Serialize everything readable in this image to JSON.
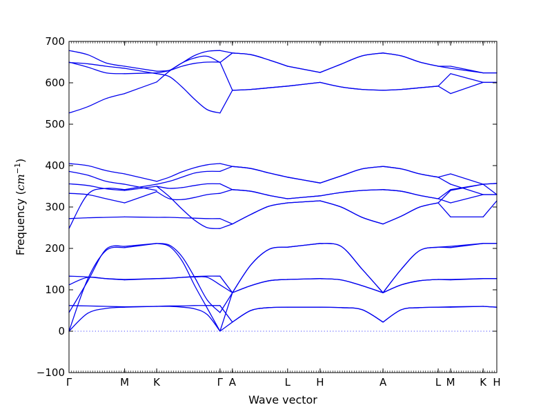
{
  "chart_data": {
    "type": "line",
    "title": "",
    "xlabel": "Wave vector",
    "ylabel": {
      "prefix": "Frequency (",
      "math": "cm",
      "sup": "−1",
      "suffix": ")"
    },
    "ylim": [
      -100,
      700
    ],
    "yticks": [
      -100,
      0,
      100,
      200,
      300,
      400,
      500,
      600,
      700
    ],
    "grid": false,
    "legend": "none",
    "line_color": "#0000ee",
    "zero_line_color": "#4444ff",
    "high_symmetry_points": [
      {
        "label": "Γ",
        "position": 0
      },
      {
        "label": "M",
        "position": 0.13
      },
      {
        "label": "K",
        "position": 0.205
      },
      {
        "label": "Γ",
        "position": 0.353
      },
      {
        "label": "A",
        "position": 0.382
      },
      {
        "label": "L",
        "position": 0.511
      },
      {
        "label": "H",
        "position": 0.587
      },
      {
        "label": "A",
        "position": 0.734
      },
      {
        "label": "L",
        "position": 0.863
      },
      {
        "label": "M",
        "position": 0.892
      },
      {
        "label": "K",
        "position": 0.968
      },
      {
        "label": "H",
        "position": 1.0
      }
    ],
    "segments": [
      {
        "from": "Γ",
        "to": "M",
        "bands": [
          [
            0,
            43,
            55,
            58
          ],
          [
            0,
            125,
            195,
            202
          ],
          [
            45,
            120,
            198,
            205
          ],
          [
            62,
            61,
            60,
            59
          ],
          [
            112,
            130,
            127,
            125
          ],
          [
            133,
            131,
            127,
            124
          ],
          [
            248,
            330,
            345,
            342
          ],
          [
            272,
            274,
            275,
            276
          ],
          [
            333,
            330,
            320,
            310
          ],
          [
            356,
            352,
            344,
            340
          ],
          [
            386,
            377,
            362,
            355
          ],
          [
            405,
            400,
            388,
            380
          ],
          [
            527,
            542,
            562,
            574
          ],
          [
            649,
            646,
            640,
            635
          ],
          [
            650,
            638,
            624,
            622
          ],
          [
            678,
            668,
            648,
            640
          ]
        ]
      },
      {
        "from": "M",
        "to": "K",
        "bands": [
          [
            58,
            60
          ],
          [
            202,
            212
          ],
          [
            205,
            212
          ],
          [
            59,
            60
          ],
          [
            125,
            127
          ],
          [
            124,
            127
          ],
          [
            342,
            355
          ],
          [
            276,
            275
          ],
          [
            310,
            337
          ],
          [
            340,
            350
          ],
          [
            355,
            340
          ],
          [
            380,
            362
          ],
          [
            574,
            602
          ],
          [
            635,
            622
          ],
          [
            622,
            624
          ],
          [
            640,
            628
          ]
        ]
      },
      {
        "from": "K",
        "to": "Γ",
        "bands": [
          [
            60,
            60,
            58,
            54,
            40,
            0
          ],
          [
            212,
            205,
            170,
            110,
            55,
            0
          ],
          [
            212,
            208,
            180,
            130,
            75,
            45
          ],
          [
            60,
            61,
            61,
            62,
            62,
            62
          ],
          [
            127,
            128,
            130,
            131,
            130,
            112
          ],
          [
            127,
            128,
            130,
            132,
            133,
            133
          ],
          [
            355,
            362,
            372,
            382,
            386,
            386
          ],
          [
            275,
            275,
            274,
            273,
            272,
            272
          ],
          [
            337,
            320,
            318,
            323,
            330,
            333
          ],
          [
            350,
            345,
            347,
            352,
            356,
            356
          ],
          [
            362,
            372,
            385,
            395,
            402,
            405
          ],
          [
            350,
            325,
            295,
            268,
            250,
            248
          ],
          [
            602,
            628,
            648,
            660,
            664,
            649
          ],
          [
            622,
            615,
            590,
            560,
            535,
            527
          ],
          [
            624,
            630,
            648,
            666,
            676,
            678
          ],
          [
            628,
            630,
            640,
            647,
            650,
            650
          ]
        ]
      },
      {
        "from": "Γ",
        "to": "A",
        "bands": [
          [
            0,
            22
          ],
          [
            0,
            93
          ],
          [
            45,
            93
          ],
          [
            62,
            22
          ],
          [
            112,
            93
          ],
          [
            133,
            93
          ],
          [
            386,
            398
          ],
          [
            272,
            259
          ],
          [
            333,
            342
          ],
          [
            356,
            342
          ],
          [
            405,
            398
          ],
          [
            248,
            259
          ],
          [
            649,
            672
          ],
          [
            527,
            582
          ],
          [
            678,
            672
          ],
          [
            650,
            582
          ]
        ]
      },
      {
        "from": "A",
        "to": "L",
        "bands": [
          [
            22,
            50,
            57,
            58
          ],
          [
            93,
            160,
            198,
            203
          ],
          [
            93,
            110,
            122,
            125
          ],
          [
            22,
            50,
            57,
            58
          ],
          [
            93,
            110,
            122,
            125
          ],
          [
            93,
            160,
            198,
            203
          ],
          [
            398,
            393,
            382,
            372
          ],
          [
            259,
            282,
            302,
            310
          ],
          [
            342,
            338,
            328,
            320
          ],
          [
            342,
            338,
            328,
            320
          ],
          [
            398,
            393,
            382,
            372
          ],
          [
            259,
            282,
            302,
            310
          ],
          [
            672,
            668,
            655,
            640
          ],
          [
            582,
            584,
            588,
            592
          ],
          [
            672,
            668,
            655,
            640
          ],
          [
            582,
            584,
            588,
            592
          ]
        ]
      },
      {
        "from": "L",
        "to": "H",
        "bands": [
          [
            58,
            58
          ],
          [
            203,
            212
          ],
          [
            125,
            127
          ],
          [
            58,
            58
          ],
          [
            125,
            127
          ],
          [
            203,
            212
          ],
          [
            372,
            358
          ],
          [
            310,
            315
          ],
          [
            320,
            327
          ],
          [
            320,
            327
          ],
          [
            372,
            358
          ],
          [
            310,
            315
          ],
          [
            640,
            625
          ],
          [
            592,
            601
          ],
          [
            640,
            625
          ],
          [
            592,
            601
          ]
        ]
      },
      {
        "from": "H",
        "to": "A",
        "bands": [
          [
            58,
            57,
            52,
            22
          ],
          [
            212,
            205,
            150,
            93
          ],
          [
            127,
            124,
            110,
            93
          ],
          [
            58,
            57,
            52,
            22
          ],
          [
            127,
            124,
            110,
            93
          ],
          [
            212,
            205,
            150,
            93
          ],
          [
            358,
            375,
            392,
            398
          ],
          [
            315,
            300,
            275,
            259
          ],
          [
            327,
            335,
            340,
            342
          ],
          [
            327,
            335,
            340,
            342
          ],
          [
            358,
            375,
            392,
            398
          ],
          [
            315,
            300,
            275,
            259
          ],
          [
            625,
            645,
            665,
            672
          ],
          [
            601,
            590,
            584,
            582
          ],
          [
            625,
            645,
            665,
            672
          ],
          [
            601,
            590,
            584,
            582
          ]
        ]
      },
      {
        "from": "A",
        "to": "L",
        "bands": [
          [
            22,
            52,
            57,
            58
          ],
          [
            93,
            150,
            195,
            203
          ],
          [
            93,
            112,
            122,
            125
          ],
          [
            22,
            52,
            57,
            58
          ],
          [
            93,
            112,
            122,
            125
          ],
          [
            93,
            150,
            195,
            203
          ],
          [
            398,
            392,
            380,
            372
          ],
          [
            259,
            278,
            300,
            310
          ],
          [
            342,
            338,
            328,
            320
          ],
          [
            342,
            338,
            328,
            320
          ],
          [
            398,
            392,
            380,
            372
          ],
          [
            259,
            278,
            300,
            310
          ],
          [
            672,
            665,
            650,
            640
          ],
          [
            582,
            584,
            588,
            592
          ],
          [
            672,
            665,
            650,
            640
          ],
          [
            582,
            584,
            588,
            592
          ]
        ]
      },
      {
        "from": "L",
        "to": "M",
        "bands": [
          [
            58,
            58
          ],
          [
            203,
            202
          ],
          [
            125,
            125
          ],
          [
            58,
            59
          ],
          [
            125,
            124
          ],
          [
            203,
            205
          ],
          [
            372,
            380
          ],
          [
            310,
            276
          ],
          [
            320,
            310
          ],
          [
            320,
            342
          ],
          [
            372,
            355
          ],
          [
            310,
            340
          ],
          [
            640,
            640
          ],
          [
            592,
            574
          ],
          [
            640,
            635
          ],
          [
            592,
            622
          ]
        ]
      },
      {
        "from": "M",
        "to": "K",
        "bands": [
          [
            58,
            60
          ],
          [
            202,
            212
          ],
          [
            205,
            212
          ],
          [
            59,
            60
          ],
          [
            125,
            127
          ],
          [
            124,
            127
          ],
          [
            380,
            355
          ],
          [
            276,
            276
          ],
          [
            310,
            330
          ],
          [
            342,
            355
          ],
          [
            355,
            330
          ],
          [
            340,
            355
          ],
          [
            640,
            624
          ],
          [
            574,
            601
          ],
          [
            635,
            624
          ],
          [
            622,
            601
          ]
        ]
      },
      {
        "from": "K",
        "to": "H",
        "bands": [
          [
            60,
            58
          ],
          [
            212,
            212
          ],
          [
            212,
            212
          ],
          [
            60,
            58
          ],
          [
            127,
            127
          ],
          [
            127,
            127
          ],
          [
            355,
            357
          ],
          [
            276,
            315
          ],
          [
            330,
            330
          ],
          [
            355,
            357
          ],
          [
            330,
            330
          ],
          [
            355,
            330
          ],
          [
            624,
            624
          ],
          [
            601,
            601
          ],
          [
            624,
            624
          ],
          [
            601,
            601
          ]
        ]
      }
    ]
  }
}
